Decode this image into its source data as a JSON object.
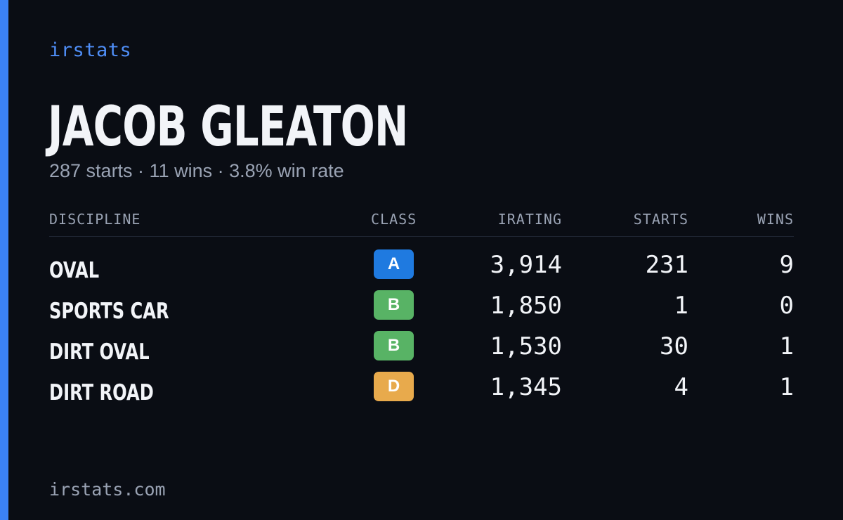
{
  "brand": "irstats",
  "driver": {
    "name": "JACOB GLEATON",
    "summary": "287 starts · 11 wins · 3.8% win rate"
  },
  "table": {
    "headers": {
      "discipline": "DISCIPLINE",
      "class": "CLASS",
      "irating": "IRATING",
      "starts": "STARTS",
      "wins": "WINS"
    },
    "rows": [
      {
        "discipline": "OVAL",
        "class": "A",
        "class_color": "#1f7ae0",
        "irating": "3,914",
        "starts": "231",
        "wins": "9"
      },
      {
        "discipline": "SPORTS CAR",
        "class": "B",
        "class_color": "#58b365",
        "irating": "1,850",
        "starts": "1",
        "wins": "0"
      },
      {
        "discipline": "DIRT OVAL",
        "class": "B",
        "class_color": "#58b365",
        "irating": "1,530",
        "starts": "30",
        "wins": "1"
      },
      {
        "discipline": "DIRT ROAD",
        "class": "D",
        "class_color": "#e8aa4c",
        "irating": "1,345",
        "starts": "4",
        "wins": "1"
      }
    ]
  },
  "footer": "irstats.com",
  "colors": {
    "accent": "#3b82f6",
    "background": "#0a0d14",
    "muted_text": "#9aa3b4"
  }
}
